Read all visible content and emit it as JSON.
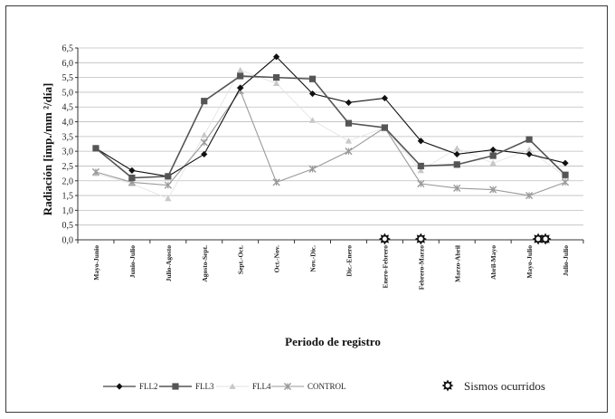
{
  "chart_data": {
    "type": "line",
    "ylabel": "Radiación [imp./mm ²/día]",
    "xlabel": "Periodo de registro",
    "ylim": [
      0,
      6.5
    ],
    "yticks": [
      "0,0",
      "0,5",
      "1,0",
      "1,5",
      "2,0",
      "2,5",
      "3,0",
      "3,5",
      "4,0",
      "4,5",
      "5,0",
      "5,5",
      "6,0",
      "6,5"
    ],
    "categories": [
      "Mayo-Junio",
      "Junio-Julio",
      "Julio-Agosto",
      "Agosto-Sept.",
      "Sept.-Oct.",
      "Oct.-Nov.",
      "Nov.-Dic.",
      "Dic.-Enero",
      "Enero-Febrero",
      "Febrero-Marzo",
      "Marzo-Abril",
      "Abril-Mayo",
      "Mayo-Julio",
      "Julio-Julio"
    ],
    "grid": "horizontal",
    "series": [
      {
        "name": "FLL2",
        "color": "#111111",
        "marker": "diamond",
        "values": [
          3.1,
          2.35,
          2.15,
          2.9,
          5.15,
          6.2,
          4.95,
          4.65,
          4.8,
          3.35,
          2.9,
          3.05,
          2.9,
          2.6
        ]
      },
      {
        "name": "FLL3",
        "color": "#555555",
        "marker": "square",
        "values": [
          3.1,
          2.1,
          2.15,
          4.7,
          5.55,
          5.5,
          5.45,
          3.95,
          3.8,
          2.5,
          2.55,
          2.85,
          3.4,
          2.2
        ]
      },
      {
        "name": "FLL4",
        "color": "#c8c8c8",
        "marker": "triangle",
        "values": [
          2.25,
          1.9,
          1.4,
          3.55,
          5.75,
          5.3,
          4.05,
          3.35,
          3.8,
          2.35,
          3.1,
          2.6,
          3.05,
          2.15
        ]
      },
      {
        "name": "CONTROL",
        "color": "#9a9a9a",
        "marker": "x",
        "values": [
          2.3,
          1.95,
          1.85,
          3.3,
          5.05,
          1.95,
          2.4,
          3.0,
          3.8,
          1.9,
          1.75,
          1.7,
          1.5,
          1.95
        ]
      }
    ],
    "earthquakes": {
      "label": "Sismos ocurridos",
      "positions": [
        8.5,
        9.5,
        12.75,
        12.95
      ]
    }
  },
  "legend": {
    "items": [
      "FLL2",
      "FLL3",
      "FLL4",
      "CONTROL"
    ],
    "quake_label": "Sismos ocurridos"
  }
}
